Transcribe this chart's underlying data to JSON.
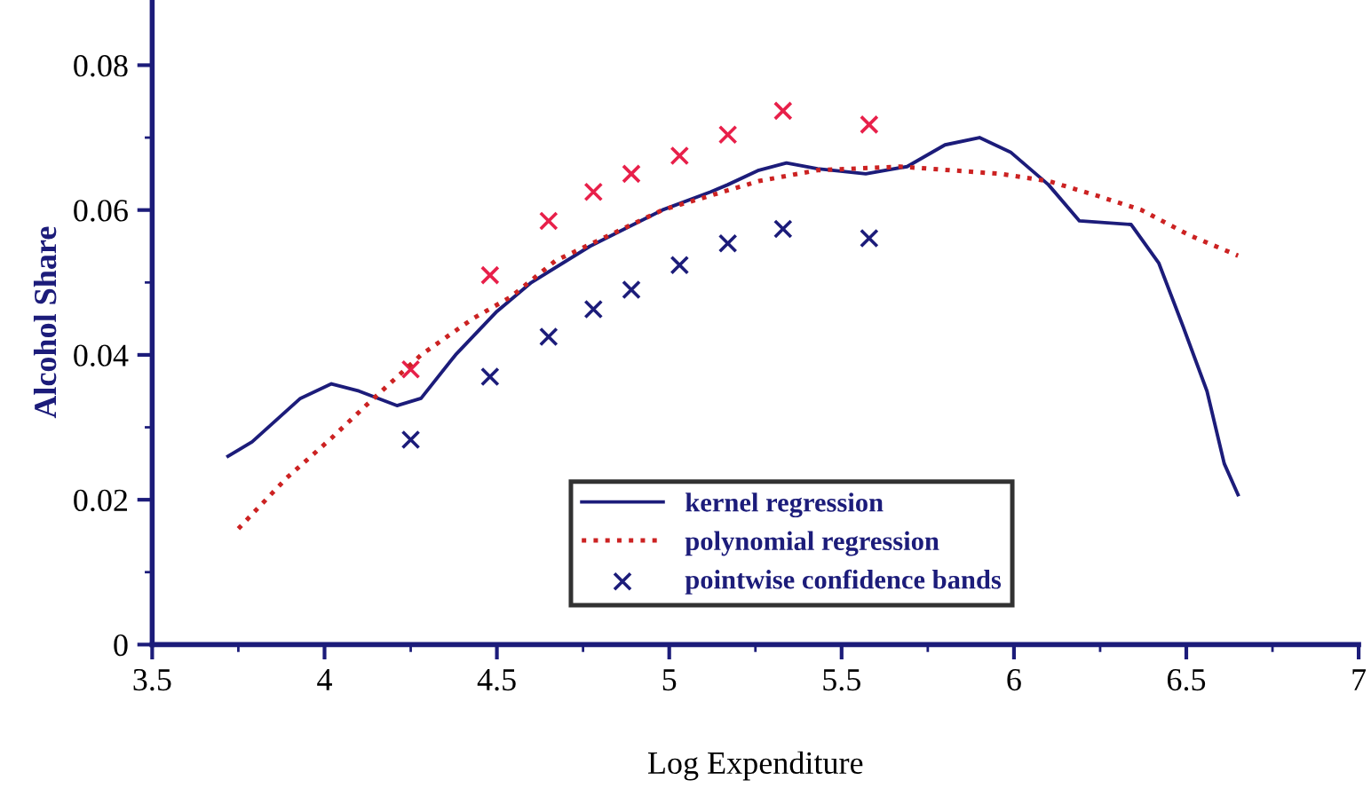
{
  "chart_data": {
    "type": "line",
    "xlabel": "Log Expenditure",
    "ylabel": "Alcohol Share",
    "xlim": [
      3.5,
      7
    ],
    "xticks": [
      3.5,
      4,
      4.5,
      5,
      5.5,
      6,
      6.5,
      7
    ],
    "ylim": [
      0,
      0.089
    ],
    "yticks": [
      0,
      0.02,
      0.04,
      0.06,
      0.08
    ],
    "grid": false,
    "legend": "bottom",
    "series": [
      {
        "name": "kernel regression",
        "line_style": "solid",
        "marker": "none",
        "color": "#1c1c7a",
        "x": [
          3.72,
          3.79,
          3.93,
          4.02,
          4.1,
          4.21,
          4.28,
          4.38,
          4.5,
          4.6,
          4.77,
          4.98,
          5.12,
          5.17,
          5.26,
          5.34,
          5.43,
          5.57,
          5.69,
          5.8,
          5.9,
          5.99,
          6.1,
          6.19,
          6.34,
          6.42,
          6.49,
          6.56,
          6.61,
          6.65
        ],
        "values": [
          0.026,
          0.028,
          0.034,
          0.036,
          0.035,
          0.033,
          0.034,
          0.04,
          0.046,
          0.05,
          0.055,
          0.06,
          0.0625,
          0.0635,
          0.0655,
          0.0665,
          0.0657,
          0.065,
          0.066,
          0.069,
          0.07,
          0.068,
          0.0635,
          0.0585,
          0.058,
          0.0527,
          0.044,
          0.035,
          0.025,
          0.0207
        ]
      },
      {
        "name": "polynomial regression",
        "line_style": "dotted",
        "marker": "none",
        "color": "#cc2222",
        "x": [
          3.75,
          3.89,
          4.02,
          4.12,
          4.28,
          4.43,
          4.54,
          4.67,
          4.98,
          5.26,
          5.43,
          5.67,
          5.96,
          6.1,
          6.24,
          6.37,
          6.51,
          6.65
        ],
        "values": [
          0.016,
          0.023,
          0.0285,
          0.033,
          0.04,
          0.045,
          0.048,
          0.053,
          0.06,
          0.064,
          0.0655,
          0.066,
          0.065,
          0.064,
          0.062,
          0.06,
          0.0565,
          0.0537
        ]
      },
      {
        "name": "pointwise confidence bands",
        "type": "scatter",
        "marker": "cross",
        "color": "#1c1c7a",
        "x": [
          4.25,
          4.48,
          4.65,
          4.78,
          4.89,
          5.03,
          5.17,
          5.33,
          5.58
        ],
        "values": [
          0.0283,
          0.037,
          0.0425,
          0.0463,
          0.049,
          0.0524,
          0.0554,
          0.0574,
          0.0561
        ]
      },
      {
        "type": "scatter",
        "marker": "cross",
        "color": "#e8204a",
        "x": [
          4.25,
          4.48,
          4.65,
          4.78,
          4.89,
          5.03,
          5.17,
          5.33,
          5.58
        ],
        "values": [
          0.038,
          0.051,
          0.0585,
          0.0625,
          0.065,
          0.0675,
          0.0704,
          0.0737,
          0.0718
        ]
      }
    ]
  }
}
